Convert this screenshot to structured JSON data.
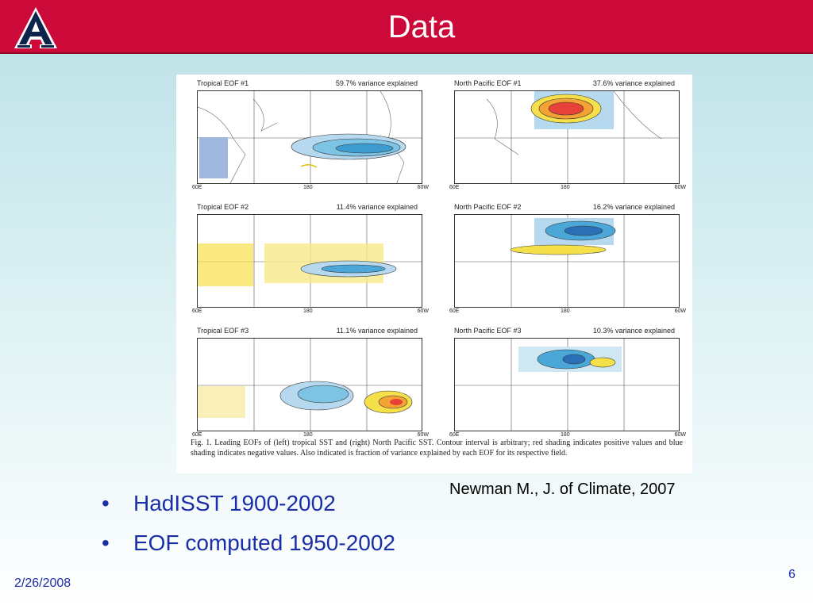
{
  "slide": {
    "title": "Data",
    "citation": "Newman M., J. of Climate, 2007",
    "bullets": [
      "HadISST 1900-2002",
      "EOF computed 1950-2002"
    ],
    "date": "2/26/2008",
    "page_number": "6"
  },
  "logo": {
    "icon": "university-of-arizona-a-logo",
    "letter": "A"
  },
  "figure": {
    "panels": [
      {
        "name": "Tropical EOF #1",
        "variance": "59.7% variance explained"
      },
      {
        "name": "North Pacific EOF #1",
        "variance": "37.6% variance explained"
      },
      {
        "name": "Tropical EOF #2",
        "variance": "11.4% variance explained"
      },
      {
        "name": "North Pacific EOF #2",
        "variance": "16.2% variance explained"
      },
      {
        "name": "Tropical EOF #3",
        "variance": "11.1% variance explained"
      },
      {
        "name": "North Pacific EOF #3",
        "variance": "10.3% variance explained"
      }
    ],
    "ticks": [
      "60E",
      "180",
      "60W"
    ],
    "caption": "Fig. 1. Leading EOFs of (left) tropical SST and (right) North Pacific SST. Contour interval is arbitrary; red shading indicates positive values and blue shading indicates negative values. Also indicated is fraction of variance explained by each EOF for its respective field."
  },
  "colors": {
    "title_bar": "#cc0a3a",
    "text_blue": "#1a2ea8",
    "positive_shading": "#e8413a",
    "negative_shading": "#4aa7d8"
  }
}
